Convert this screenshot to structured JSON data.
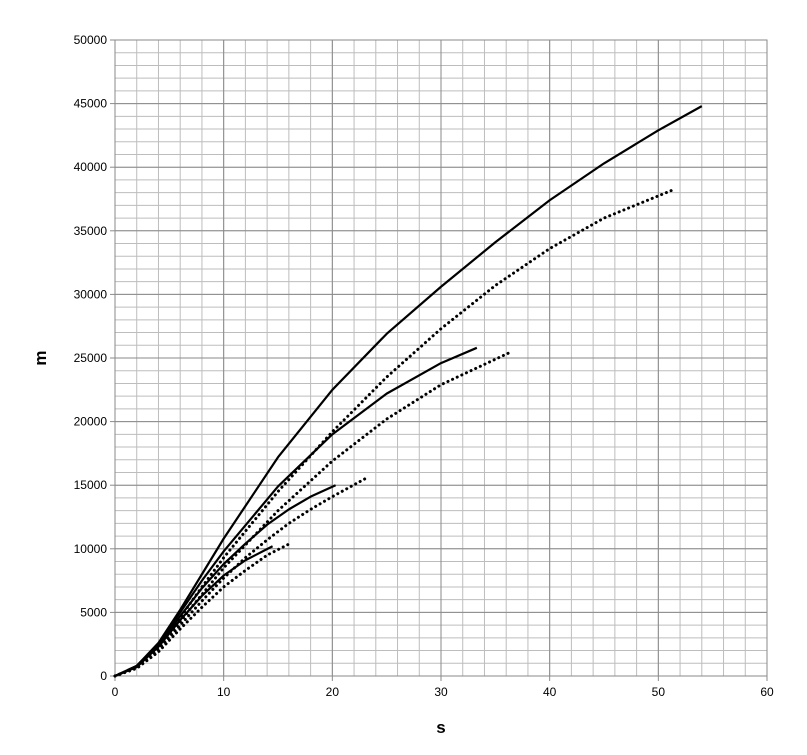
{
  "chart_data": {
    "type": "line",
    "x_label": "s",
    "y_label": "m",
    "xlim": [
      0,
      60
    ],
    "xticks": [
      0,
      10,
      20,
      30,
      40,
      50,
      60
    ],
    "ylim": [
      0,
      50000
    ],
    "yticks": [
      0,
      5000,
      10000,
      15000,
      20000,
      25000,
      30000,
      35000,
      40000,
      45000,
      50000
    ],
    "grid": true,
    "x_minor_step": 2,
    "y_minor_step": 1000,
    "series": [
      {
        "color": "#000000",
        "dashed": false,
        "x": [
          0,
          2,
          4,
          6,
          8,
          10,
          15,
          20,
          25,
          30,
          35,
          40,
          45,
          50,
          54
        ],
        "values": [
          0,
          800,
          2600,
          5200,
          8000,
          10800,
          17200,
          22500,
          26900,
          30600,
          34100,
          37400,
          40300,
          42900,
          44800
        ]
      },
      {
        "color": "#000000",
        "dashed": true,
        "x": [
          0,
          2,
          4,
          6,
          8,
          10,
          15,
          20,
          25,
          30,
          35,
          40,
          45,
          51.3
        ],
        "values": [
          0,
          700,
          2300,
          4600,
          7000,
          9300,
          14500,
          19200,
          23500,
          27300,
          30700,
          33600,
          36000,
          38200
        ]
      },
      {
        "color": "#000000",
        "dashed": false,
        "x": [
          0,
          2,
          4,
          6,
          8,
          10,
          15,
          20,
          25,
          30,
          33.3
        ],
        "values": [
          0,
          800,
          2500,
          5000,
          7500,
          9800,
          14900,
          19000,
          22200,
          24600,
          25800
        ]
      },
      {
        "color": "#000000",
        "dashed": true,
        "x": [
          0,
          2,
          4,
          6,
          8,
          10,
          15,
          20,
          25,
          30,
          36.5
        ],
        "values": [
          0,
          700,
          2200,
          4300,
          6400,
          8500,
          13000,
          16900,
          20200,
          22900,
          25500
        ]
      },
      {
        "color": "#000000",
        "dashed": false,
        "x": [
          0,
          2,
          4,
          6,
          8,
          10,
          12,
          14,
          16,
          18,
          20.3
        ],
        "values": [
          0,
          750,
          2400,
          4700,
          6900,
          8800,
          10400,
          11900,
          13100,
          14100,
          15000
        ]
      },
      {
        "color": "#000000",
        "dashed": true,
        "x": [
          0,
          2,
          4,
          6,
          8,
          10,
          12,
          14,
          16,
          18,
          20,
          23
        ],
        "values": [
          0,
          650,
          2100,
          4000,
          5900,
          7700,
          9300,
          10700,
          12000,
          13100,
          14100,
          15500
        ]
      },
      {
        "color": "#000000",
        "dashed": false,
        "x": [
          0,
          2,
          4,
          6,
          8,
          10,
          12,
          14.5
        ],
        "values": [
          0,
          700,
          2300,
          4400,
          6300,
          7900,
          9100,
          10200
        ]
      },
      {
        "color": "#000000",
        "dashed": true,
        "x": [
          0,
          2,
          4,
          6,
          8,
          10,
          12,
          14,
          16.3
        ],
        "values": [
          0,
          600,
          1900,
          3700,
          5400,
          7000,
          8300,
          9500,
          10500
        ]
      }
    ]
  }
}
